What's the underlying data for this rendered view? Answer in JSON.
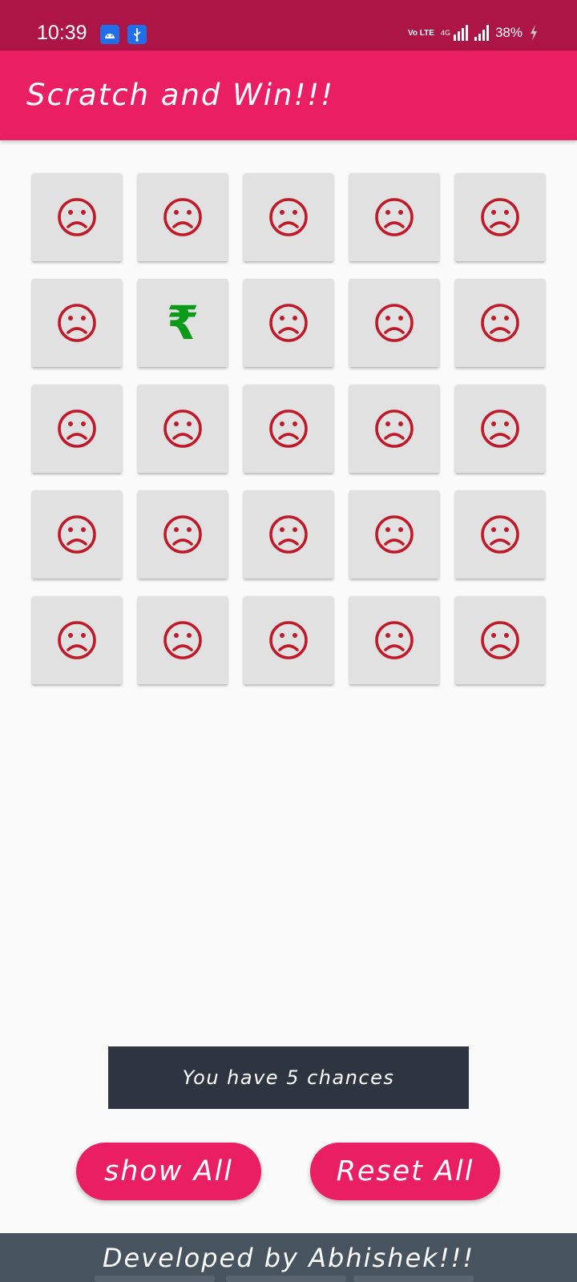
{
  "status_bar": {
    "time": "10:39",
    "volte": "Vo LTE",
    "network": "4G",
    "battery": "38%"
  },
  "app_bar": {
    "title": "Scratch and Win!!!"
  },
  "grid": {
    "rows": 5,
    "cols": 5,
    "tiles": [
      "sad",
      "sad",
      "sad",
      "sad",
      "sad",
      "sad",
      "rupee",
      "sad",
      "sad",
      "sad",
      "sad",
      "sad",
      "sad",
      "sad",
      "sad",
      "sad",
      "sad",
      "sad",
      "sad",
      "sad",
      "sad",
      "sad",
      "sad",
      "sad",
      "sad"
    ],
    "sad_color": "#c01a2a",
    "rupee_color": "#0b9a1a",
    "rupee_symbol": "₹"
  },
  "chances_text": "You have 5 chances",
  "buttons": {
    "show_all": "show All",
    "reset_all": "Reset All"
  },
  "footer": {
    "text": "Developed by Abhishek!!!"
  }
}
